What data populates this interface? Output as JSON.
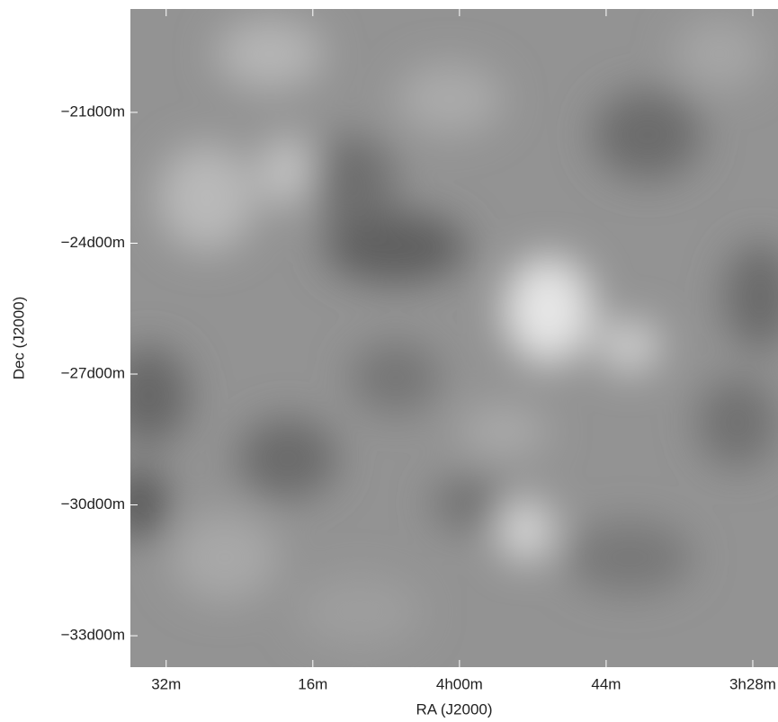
{
  "chart_data": {
    "type": "image",
    "xlabel": "RA (J2000)",
    "ylabel": "Dec (J2000)",
    "xlim": [
      275.9,
      205.25
    ],
    "xticks": [
      {
        "value": 272,
        "label": "32m"
      },
      {
        "value": 256,
        "label": "16m"
      },
      {
        "value": 240,
        "label": "4h00m"
      },
      {
        "value": 224,
        "label": "44m"
      },
      {
        "value": 208,
        "label": "3h28m"
      }
    ],
    "ylim": [
      -33.72,
      -18.63
    ],
    "yticks": [
      {
        "value": -21,
        "label": "−21d00m"
      },
      {
        "value": -24,
        "label": "−24d00m"
      },
      {
        "value": -27,
        "label": "−27d00m"
      },
      {
        "value": -30,
        "label": "−30d00m"
      },
      {
        "value": -33,
        "label": "−33d00m"
      }
    ]
  }
}
